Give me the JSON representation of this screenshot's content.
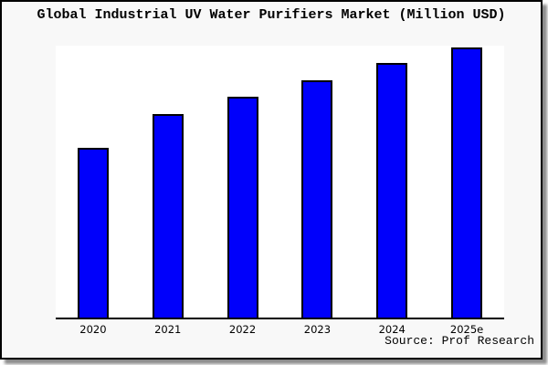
{
  "figure": {
    "title": "Global Industrial UV Water Purifiers Market (Million USD)",
    "source": "Source: Prof Research"
  },
  "colors": {
    "bar_fill": "#0000FB",
    "bar_edge": "#000000",
    "figure_background": "#F8F8F8",
    "plot_background": "#FFFFFF",
    "frame_border": "#000000",
    "text": "#000000"
  },
  "chart_data": {
    "type": "bar",
    "title": "Global Industrial UV Water Purifiers Market (Million USD)",
    "categories": [
      "2020",
      "2021",
      "2022",
      "2023",
      "2024",
      "2025e"
    ],
    "values": [
      186,
      223,
      242,
      260,
      279,
      296
    ],
    "values_note": "no numeric y-axis is shown in the figure; values are relative bar heights (px), max bar nearly touches plot top",
    "xlabel": "",
    "ylabel": "",
    "ylim": [
      0,
      298
    ],
    "grid": false,
    "legend": false,
    "annotations": [
      "Source: Prof Research"
    ]
  }
}
